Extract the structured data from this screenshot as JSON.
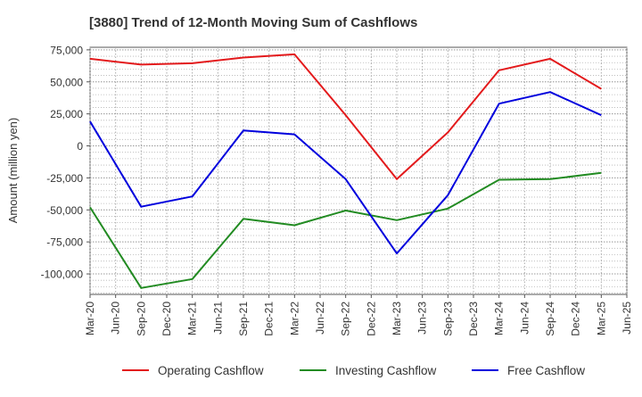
{
  "chart_data": {
    "type": "line",
    "title": "[3880]  Trend of 12-Month Moving Sum of Cashflows",
    "xlabel": "",
    "ylabel": "Amount (million yen)",
    "x_ticks": [
      "Mar-20",
      "Jun-20",
      "Sep-20",
      "Dec-20",
      "Mar-21",
      "Jun-21",
      "Sep-21",
      "Dec-21",
      "Mar-22",
      "Jun-22",
      "Sep-22",
      "Dec-22",
      "Mar-23",
      "Jun-23",
      "Sep-23",
      "Dec-23",
      "Mar-24",
      "Jun-24",
      "Sep-24",
      "Dec-24",
      "Mar-25",
      "Jun-25"
    ],
    "y_ticks": [
      75000,
      50000,
      25000,
      0,
      -25000,
      -50000,
      -75000,
      -100000
    ],
    "y_tick_labels": [
      "75,000",
      "50,000",
      "25,000",
      "0",
      "-25,000",
      "-50,000",
      "-75,000",
      "-100,000"
    ],
    "ylim": [
      -116000,
      77000
    ],
    "grid": true,
    "legend_position": "bottom",
    "series": [
      {
        "name": "Operating Cashflow",
        "color": "#e31a1c",
        "points": [
          [
            "Mar-20",
            68000
          ],
          [
            "Sep-20",
            63500
          ],
          [
            "Mar-21",
            64500
          ],
          [
            "Sep-21",
            69000
          ],
          [
            "Mar-22",
            71500
          ],
          [
            "Sep-22",
            24000
          ],
          [
            "Mar-23",
            -26000
          ],
          [
            "Sep-23",
            10500
          ],
          [
            "Mar-24",
            59000
          ],
          [
            "Sep-24",
            68000
          ],
          [
            "Mar-25",
            44500
          ]
        ]
      },
      {
        "name": "Investing Cashflow",
        "color": "#228b22",
        "points": [
          [
            "Mar-20",
            -48000
          ],
          [
            "Sep-20",
            -111000
          ],
          [
            "Mar-21",
            -104000
          ],
          [
            "Sep-21",
            -57000
          ],
          [
            "Mar-22",
            -62000
          ],
          [
            "Sep-22",
            -50500
          ],
          [
            "Mar-23",
            -58000
          ],
          [
            "Sep-23",
            -49000
          ],
          [
            "Mar-24",
            -26500
          ],
          [
            "Sep-24",
            -26000
          ],
          [
            "Mar-25",
            -21000
          ]
        ]
      },
      {
        "name": "Free Cashflow",
        "color": "#0000dd",
        "points": [
          [
            "Mar-20",
            19000
          ],
          [
            "Sep-20",
            -47500
          ],
          [
            "Mar-21",
            -39500
          ],
          [
            "Sep-21",
            12000
          ],
          [
            "Mar-22",
            9000
          ],
          [
            "Sep-22",
            -26000
          ],
          [
            "Mar-23",
            -84000
          ],
          [
            "Sep-23",
            -38500
          ],
          [
            "Mar-24",
            33000
          ],
          [
            "Sep-24",
            42000
          ],
          [
            "Mar-25",
            24000
          ]
        ]
      }
    ]
  }
}
